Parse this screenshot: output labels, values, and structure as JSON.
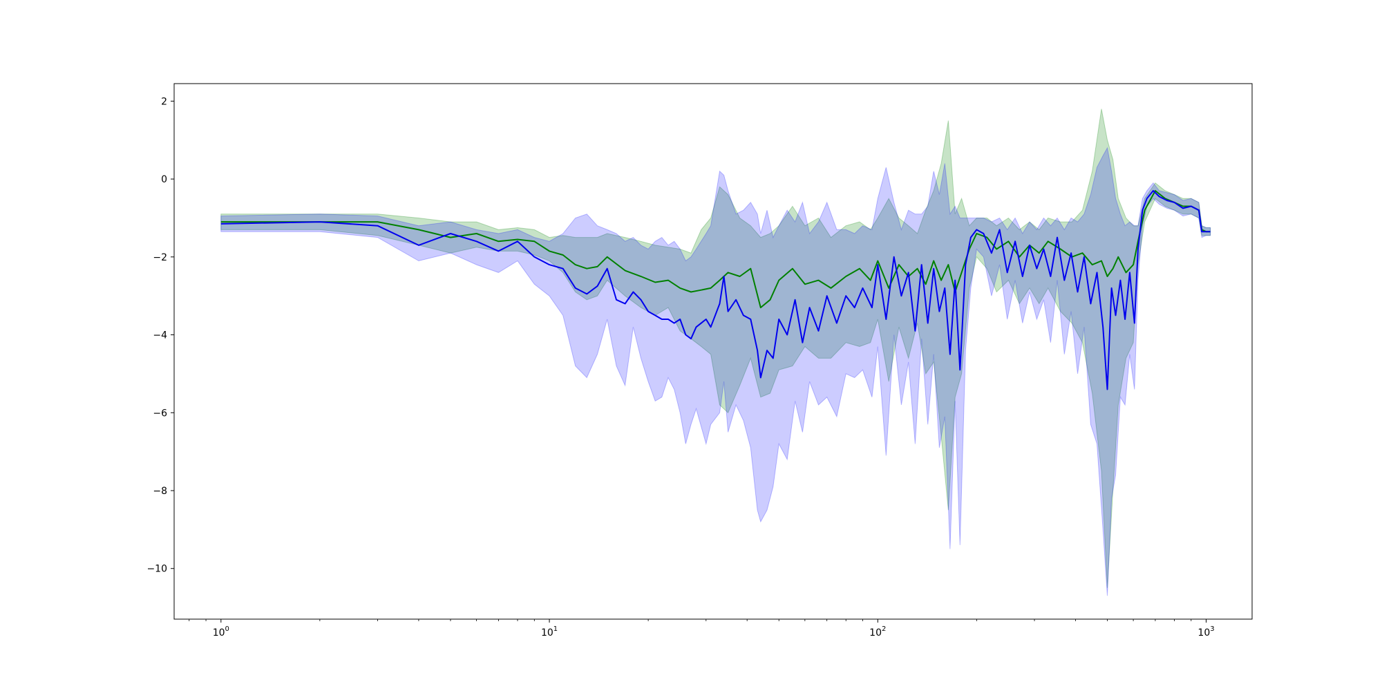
{
  "chart_data": {
    "type": "line",
    "title": "",
    "xlabel": "",
    "ylabel": "",
    "xscale": "log",
    "xlim": [
      0.72,
      1380
    ],
    "ylim": [
      -11.3,
      2.45
    ],
    "grid": false,
    "legend": "none",
    "x_ticks": [
      {
        "value": 1,
        "base": "10",
        "exp": "0"
      },
      {
        "value": 10,
        "base": "10",
        "exp": "1"
      },
      {
        "value": 100,
        "base": "10",
        "exp": "2"
      },
      {
        "value": 1000,
        "base": "10",
        "exp": "3"
      }
    ],
    "y_ticks": [
      {
        "value": 2,
        "label": "2"
      },
      {
        "value": 0,
        "label": "0"
      },
      {
        "value": -2,
        "label": "−2"
      },
      {
        "value": -4,
        "label": "−4"
      },
      {
        "value": -6,
        "label": "−6"
      },
      {
        "value": -8,
        "label": "−8"
      },
      {
        "value": -10,
        "label": "−10"
      }
    ],
    "series": [
      {
        "color": "#008000",
        "band_color": "#008000",
        "band_opacity": 0.22,
        "points": [
          [
            1,
            -1.1,
            -0.9,
            -1.3
          ],
          [
            2,
            -1.1,
            -0.9,
            -1.3
          ],
          [
            3,
            -1.1,
            -0.9,
            -1.45
          ],
          [
            4,
            -1.3,
            -1.0,
            -1.7
          ],
          [
            5,
            -1.5,
            -1.1,
            -1.9
          ],
          [
            6,
            -1.4,
            -1.1,
            -1.75
          ],
          [
            7,
            -1.6,
            -1.3,
            -1.85
          ],
          [
            8,
            -1.55,
            -1.25,
            -1.85
          ],
          [
            9,
            -1.6,
            -1.3,
            -1.95
          ],
          [
            10,
            -1.85,
            -1.5,
            -2.1
          ],
          [
            11,
            -1.95,
            -1.45,
            -2.4
          ],
          [
            12,
            -2.2,
            -1.5,
            -2.9
          ],
          [
            13,
            -2.3,
            -1.5,
            -3.1
          ],
          [
            14,
            -2.25,
            -1.5,
            -3.0
          ],
          [
            15,
            -2.0,
            -1.4,
            -2.6
          ],
          [
            17,
            -2.35,
            -1.5,
            -3.0
          ],
          [
            19,
            -2.5,
            -1.6,
            -3.3
          ],
          [
            21,
            -2.65,
            -1.7,
            -3.5
          ],
          [
            23,
            -2.6,
            -1.75,
            -3.3
          ],
          [
            25,
            -2.8,
            -1.8,
            -3.9
          ],
          [
            27,
            -2.9,
            -1.9,
            -4.1
          ],
          [
            29,
            -2.85,
            -1.3,
            -4.3
          ],
          [
            31,
            -2.8,
            -1.0,
            -4.5
          ],
          [
            33,
            -2.6,
            -0.2,
            -5.8
          ],
          [
            35,
            -2.4,
            -0.4,
            -6.0
          ],
          [
            38,
            -2.5,
            -1.0,
            -5.3
          ],
          [
            41,
            -2.3,
            -1.2,
            -4.6
          ],
          [
            44,
            -3.3,
            -1.5,
            -5.6
          ],
          [
            47,
            -3.1,
            -1.4,
            -5.5
          ],
          [
            50,
            -2.6,
            -1.2,
            -4.9
          ],
          [
            55,
            -2.3,
            -0.7,
            -4.8
          ],
          [
            60,
            -2.7,
            -1.2,
            -4.3
          ],
          [
            66,
            -2.6,
            -1.0,
            -4.6
          ],
          [
            72,
            -2.8,
            -1.5,
            -4.6
          ],
          [
            80,
            -2.5,
            -1.2,
            -4.2
          ],
          [
            88,
            -2.3,
            -1.1,
            -4.3
          ],
          [
            95,
            -2.6,
            -1.3,
            -4.2
          ],
          [
            100,
            -2.1,
            -1.0,
            -3.6
          ],
          [
            108,
            -2.8,
            -0.5,
            -5.2
          ],
          [
            116,
            -2.2,
            -1.0,
            -3.8
          ],
          [
            124,
            -2.5,
            -1.2,
            -4.6
          ],
          [
            132,
            -2.3,
            -1.4,
            -3.7
          ],
          [
            140,
            -2.7,
            -0.8,
            -5.0
          ],
          [
            148,
            -2.1,
            -0.3,
            -4.7
          ],
          [
            156,
            -2.6,
            0.4,
            -6.6
          ],
          [
            164,
            -2.2,
            1.5,
            -8.5
          ],
          [
            172,
            -2.9,
            -0.9,
            -5.6
          ],
          [
            180,
            -2.4,
            -0.5,
            -5.0
          ],
          [
            190,
            -1.8,
            -1.2,
            -2.8
          ],
          [
            200,
            -1.4,
            -1.0,
            -2.0
          ],
          [
            215,
            -1.5,
            -1.0,
            -2.3
          ],
          [
            230,
            -1.8,
            -1.2,
            -2.9
          ],
          [
            250,
            -1.6,
            -1.0,
            -2.6
          ],
          [
            270,
            -2.0,
            -1.3,
            -3.2
          ],
          [
            290,
            -1.7,
            -1.1,
            -2.8
          ],
          [
            310,
            -1.9,
            -1.3,
            -3.2
          ],
          [
            330,
            -1.6,
            -1.0,
            -2.8
          ],
          [
            360,
            -1.8,
            -1.1,
            -3.4
          ],
          [
            390,
            -2.0,
            -1.1,
            -3.7
          ],
          [
            420,
            -1.9,
            -0.8,
            -4.2
          ],
          [
            450,
            -2.2,
            0.2,
            -5.5
          ],
          [
            480,
            -2.1,
            1.8,
            -7.5
          ],
          [
            500,
            -2.5,
            1.0,
            -10.5
          ],
          [
            520,
            -2.3,
            0.5,
            -8.0
          ],
          [
            540,
            -2.0,
            -0.5,
            -5.8
          ],
          [
            570,
            -2.4,
            -1.0,
            -4.6
          ],
          [
            600,
            -2.2,
            -1.2,
            -4.2
          ],
          [
            620,
            -1.6,
            -1.2,
            -2.2
          ],
          [
            650,
            -0.8,
            -0.5,
            -1.1
          ],
          [
            700,
            -0.3,
            -0.1,
            -0.5
          ],
          [
            750,
            -0.5,
            -0.3,
            -0.7
          ],
          [
            800,
            -0.6,
            -0.4,
            -0.8
          ],
          [
            850,
            -0.7,
            -0.5,
            -0.9
          ],
          [
            900,
            -0.7,
            -0.5,
            -0.9
          ],
          [
            950,
            -0.8,
            -0.6,
            -1.0
          ],
          [
            970,
            -1.3,
            -1.2,
            -1.45
          ],
          [
            1000,
            -1.35,
            -1.25,
            -1.45
          ],
          [
            1030,
            -1.35,
            -1.25,
            -1.45
          ]
        ]
      },
      {
        "color": "#0000ee",
        "band_color": "#0000ff",
        "band_opacity": 0.2,
        "points": [
          [
            1,
            -1.15,
            -0.95,
            -1.35
          ],
          [
            2,
            -1.1,
            -0.9,
            -1.35
          ],
          [
            3,
            -1.2,
            -0.95,
            -1.5
          ],
          [
            4,
            -1.7,
            -1.2,
            -2.1
          ],
          [
            5,
            -1.4,
            -1.1,
            -1.9
          ],
          [
            6,
            -1.6,
            -1.3,
            -2.2
          ],
          [
            7,
            -1.85,
            -1.4,
            -2.4
          ],
          [
            8,
            -1.6,
            -1.3,
            -2.1
          ],
          [
            9,
            -2.0,
            -1.5,
            -2.7
          ],
          [
            10,
            -2.2,
            -1.6,
            -3.0
          ],
          [
            11,
            -2.3,
            -1.4,
            -3.5
          ],
          [
            12,
            -2.8,
            -1.0,
            -4.8
          ],
          [
            13,
            -2.95,
            -0.9,
            -5.1
          ],
          [
            14,
            -2.75,
            -1.2,
            -4.5
          ],
          [
            15,
            -2.3,
            -1.3,
            -3.6
          ],
          [
            16,
            -3.1,
            -1.4,
            -4.8
          ],
          [
            17,
            -3.2,
            -1.6,
            -5.3
          ],
          [
            18,
            -2.9,
            -1.5,
            -3.8
          ],
          [
            19,
            -3.1,
            -1.7,
            -4.6
          ],
          [
            20,
            -3.4,
            -1.8,
            -5.2
          ],
          [
            21,
            -3.5,
            -1.6,
            -5.7
          ],
          [
            22,
            -3.6,
            -1.5,
            -5.6
          ],
          [
            23,
            -3.6,
            -1.7,
            -5.1
          ],
          [
            24,
            -3.7,
            -1.6,
            -5.4
          ],
          [
            25,
            -3.6,
            -1.8,
            -6.0
          ],
          [
            26,
            -4.0,
            -2.1,
            -6.8
          ],
          [
            27,
            -4.1,
            -2.0,
            -6.3
          ],
          [
            28,
            -3.8,
            -1.8,
            -5.9
          ],
          [
            30,
            -3.6,
            -1.4,
            -6.8
          ],
          [
            31,
            -3.8,
            -1.2,
            -6.3
          ],
          [
            33,
            -3.2,
            0.2,
            -6.0
          ],
          [
            34,
            -2.5,
            0.1,
            -5.2
          ],
          [
            35,
            -3.4,
            -0.3,
            -6.5
          ],
          [
            37,
            -3.1,
            -0.9,
            -5.8
          ],
          [
            39,
            -3.5,
            -0.8,
            -6.2
          ],
          [
            41,
            -3.6,
            -0.6,
            -6.9
          ],
          [
            43,
            -4.4,
            -0.9,
            -8.5
          ],
          [
            44,
            -5.1,
            -1.4,
            -8.8
          ],
          [
            46,
            -4.4,
            -0.8,
            -8.5
          ],
          [
            48,
            -4.6,
            -1.5,
            -7.9
          ],
          [
            50,
            -3.6,
            -1.2,
            -6.8
          ],
          [
            53,
            -4.0,
            -0.8,
            -7.2
          ],
          [
            56,
            -3.1,
            -1.1,
            -5.7
          ],
          [
            59,
            -4.2,
            -0.6,
            -6.5
          ],
          [
            62,
            -3.3,
            -1.4,
            -5.2
          ],
          [
            66,
            -3.9,
            -1.1,
            -5.8
          ],
          [
            70,
            -3.0,
            -0.6,
            -5.6
          ],
          [
            75,
            -3.7,
            -1.3,
            -6.1
          ],
          [
            80,
            -3.0,
            -1.3,
            -5.0
          ],
          [
            85,
            -3.3,
            -1.4,
            -5.1
          ],
          [
            90,
            -2.8,
            -1.2,
            -4.9
          ],
          [
            96,
            -3.3,
            -1.3,
            -5.6
          ],
          [
            100,
            -2.2,
            -0.5,
            -4.3
          ],
          [
            106,
            -3.6,
            0.3,
            -7.1
          ],
          [
            112,
            -2.0,
            -0.6,
            -4.0
          ],
          [
            118,
            -3.0,
            -1.3,
            -5.8
          ],
          [
            124,
            -2.4,
            -0.8,
            -4.7
          ],
          [
            130,
            -3.9,
            -0.9,
            -6.8
          ],
          [
            136,
            -2.2,
            -0.9,
            -4.1
          ],
          [
            142,
            -3.7,
            -0.7,
            -6.3
          ],
          [
            148,
            -2.3,
            0.2,
            -4.5
          ],
          [
            154,
            -3.4,
            -0.4,
            -6.9
          ],
          [
            160,
            -2.8,
            0.4,
            -6.1
          ],
          [
            166,
            -4.5,
            -0.9,
            -9.5
          ],
          [
            172,
            -2.6,
            -0.7,
            -5.7
          ],
          [
            178,
            -4.9,
            -1.0,
            -9.4
          ],
          [
            185,
            -2.2,
            -1.0,
            -4.4
          ],
          [
            192,
            -1.5,
            -1.0,
            -2.8
          ],
          [
            200,
            -1.3,
            -1.0,
            -1.8
          ],
          [
            210,
            -1.4,
            -1.0,
            -2.0
          ],
          [
            222,
            -1.9,
            -1.1,
            -3.0
          ],
          [
            235,
            -1.3,
            -1.0,
            -2.2
          ],
          [
            248,
            -2.4,
            -1.3,
            -3.6
          ],
          [
            262,
            -1.6,
            -1.0,
            -2.6
          ],
          [
            276,
            -2.5,
            -1.4,
            -3.7
          ],
          [
            290,
            -1.7,
            -1.1,
            -2.9
          ],
          [
            305,
            -2.3,
            -1.3,
            -3.6
          ],
          [
            320,
            -1.8,
            -1.0,
            -3.1
          ],
          [
            336,
            -2.5,
            -1.2,
            -4.2
          ],
          [
            352,
            -1.5,
            -1.0,
            -2.6
          ],
          [
            370,
            -2.6,
            -1.3,
            -4.5
          ],
          [
            388,
            -1.9,
            -1.0,
            -3.4
          ],
          [
            406,
            -2.9,
            -1.1,
            -5.0
          ],
          [
            425,
            -2.0,
            -0.9,
            -3.8
          ],
          [
            445,
            -3.2,
            -0.4,
            -6.3
          ],
          [
            465,
            -2.4,
            0.3,
            -6.8
          ],
          [
            485,
            -3.8,
            0.6,
            -9.0
          ],
          [
            500,
            -5.4,
            0.8,
            -10.7
          ],
          [
            515,
            -2.8,
            0.2,
            -8.2
          ],
          [
            530,
            -3.5,
            -0.5,
            -7.6
          ],
          [
            548,
            -2.6,
            -0.9,
            -5.6
          ],
          [
            566,
            -3.6,
            -1.2,
            -5.8
          ],
          [
            585,
            -2.4,
            -1.1,
            -4.5
          ],
          [
            605,
            -3.7,
            -1.2,
            -5.4
          ],
          [
            620,
            -1.8,
            -1.2,
            -2.6
          ],
          [
            640,
            -0.8,
            -0.5,
            -1.2
          ],
          [
            660,
            -0.5,
            -0.3,
            -0.7
          ],
          [
            690,
            -0.3,
            -0.1,
            -0.5
          ],
          [
            720,
            -0.45,
            -0.3,
            -0.65
          ],
          [
            760,
            -0.55,
            -0.35,
            -0.75
          ],
          [
            800,
            -0.6,
            -0.4,
            -0.8
          ],
          [
            850,
            -0.75,
            -0.55,
            -0.95
          ],
          [
            900,
            -0.7,
            -0.5,
            -0.9
          ],
          [
            950,
            -0.8,
            -0.6,
            -1.0
          ],
          [
            970,
            -1.35,
            -1.2,
            -1.5
          ],
          [
            1000,
            -1.35,
            -1.25,
            -1.45
          ],
          [
            1030,
            -1.35,
            -1.25,
            -1.45
          ]
        ]
      }
    ]
  }
}
